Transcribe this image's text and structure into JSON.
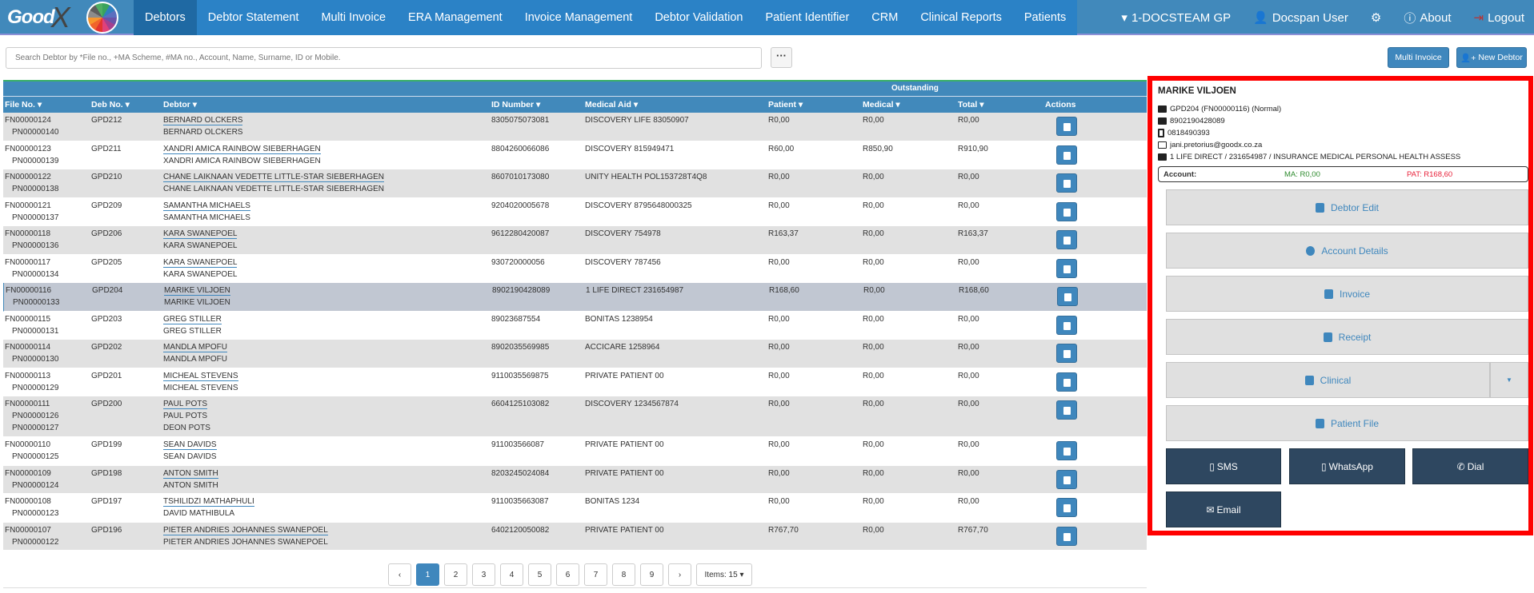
{
  "nav": {
    "logo": "Good",
    "logo_x": "X",
    "tabs": [
      "Debtors",
      "Debtor Statement",
      "Multi Invoice",
      "ERA Management",
      "Invoice Management",
      "Debtor Validation",
      "Patient Identifier",
      "CRM",
      "Clinical Reports",
      "Patients"
    ],
    "practice": "1-DOCSTEAM GP",
    "user": "Docspan User",
    "about": "About",
    "logout": "Logout"
  },
  "toolbar": {
    "search_placeholder": "Search Debtor by *File no., +MA Scheme, #MA no., Account, Name, Surname, ID or Mobile.",
    "more": "···",
    "multi_invoice": "Multi Invoice",
    "new_debtor": "New Debtor"
  },
  "table": {
    "group_header": "Outstanding",
    "columns": [
      "File No.",
      "Deb No.",
      "Debtor",
      "ID Number",
      "Medical Aid",
      "Patient",
      "Medical",
      "Total",
      "Actions"
    ],
    "rows": [
      {
        "file": "FN00000124",
        "pn": [
          "PN00000140"
        ],
        "deb": "GPD212",
        "debtor": "BERNARD OLCKERS",
        "patients": [
          "BERNARD OLCKERS"
        ],
        "id": "8305075073081",
        "ma": "DISCOVERY LIFE 83050907",
        "patient": "R0,00",
        "medical": "R0,00",
        "total": "R0,00"
      },
      {
        "file": "FN00000123",
        "pn": [
          "PN00000139"
        ],
        "deb": "GPD211",
        "debtor": "XANDRI AMICA RAINBOW SIEBERHAGEN",
        "patients": [
          "XANDRI AMICA RAINBOW SIEBERHAGEN"
        ],
        "id": "8804260066086",
        "ma": "DISCOVERY 815949471",
        "patient": "R60,00",
        "medical": "R850,90",
        "total": "R910,90"
      },
      {
        "file": "FN00000122",
        "pn": [
          "PN00000138"
        ],
        "deb": "GPD210",
        "debtor": "CHANE LAIKNAAN VEDETTE LITTLE-STAR SIEBERHAGEN",
        "patients": [
          "CHANE LAIKNAAN VEDETTE LITTLE-STAR SIEBERHAGEN"
        ],
        "id": "8607010173080",
        "ma": "UNITY HEALTH POL153728T4Q8",
        "patient": "R0,00",
        "medical": "R0,00",
        "total": "R0,00"
      },
      {
        "file": "FN00000121",
        "pn": [
          "PN00000137"
        ],
        "deb": "GPD209",
        "debtor": "SAMANTHA MICHAELS",
        "patients": [
          "SAMANTHA MICHAELS"
        ],
        "id": "9204020005678",
        "ma": "DISCOVERY 8795648000325",
        "patient": "R0,00",
        "medical": "R0,00",
        "total": "R0,00"
      },
      {
        "file": "FN00000118",
        "pn": [
          "PN00000136"
        ],
        "deb": "GPD206",
        "debtor": "KARA SWANEPOEL",
        "patients": [
          "KARA SWANEPOEL"
        ],
        "id": "9612280420087",
        "ma": "DISCOVERY 754978",
        "patient": "R163,37",
        "medical": "R0,00",
        "total": "R163,37"
      },
      {
        "file": "FN00000117",
        "pn": [
          "PN00000134"
        ],
        "deb": "GPD205",
        "debtor": "KARA SWANEPOEL",
        "patients": [
          "KARA SWANEPOEL"
        ],
        "id": "930720000056",
        "ma": "DISCOVERY 787456",
        "patient": "R0,00",
        "medical": "R0,00",
        "total": "R0,00"
      },
      {
        "file": "FN00000116",
        "pn": [
          "PN00000133"
        ],
        "deb": "GPD204",
        "debtor": "MARIKE VILJOEN",
        "patients": [
          "MARIKE VILJOEN"
        ],
        "id": "8902190428089",
        "ma": "1 LIFE DIRECT 231654987",
        "patient": "R168,60",
        "medical": "R0,00",
        "total": "R168,60",
        "selected": true
      },
      {
        "file": "FN00000115",
        "pn": [
          "PN00000131"
        ],
        "deb": "GPD203",
        "debtor": "GREG STILLER",
        "patients": [
          "GREG STILLER"
        ],
        "id": "89023687554",
        "ma": "BONITAS 1238954",
        "patient": "R0,00",
        "medical": "R0,00",
        "total": "R0,00"
      },
      {
        "file": "FN00000114",
        "pn": [
          "PN00000130"
        ],
        "deb": "GPD202",
        "debtor": "MANDLA MPOFU",
        "patients": [
          "MANDLA MPOFU"
        ],
        "id": "8902035569985",
        "ma": "ACCICARE 1258964",
        "patient": "R0,00",
        "medical": "R0,00",
        "total": "R0,00"
      },
      {
        "file": "FN00000113",
        "pn": [
          "PN00000129"
        ],
        "deb": "GPD201",
        "debtor": "MICHEAL STEVENS",
        "patients": [
          "MICHEAL STEVENS"
        ],
        "id": "9110035569875",
        "ma": "PRIVATE PATIENT 00",
        "patient": "R0,00",
        "medical": "R0,00",
        "total": "R0,00"
      },
      {
        "file": "FN00000111",
        "pn": [
          "PN00000126",
          "PN00000127"
        ],
        "deb": "GPD200",
        "debtor": "PAUL POTS",
        "patients": [
          "PAUL POTS",
          "DEON POTS"
        ],
        "id": "6604125103082",
        "ma": "DISCOVERY 1234567874",
        "patient": "R0,00",
        "medical": "R0,00",
        "total": "R0,00"
      },
      {
        "file": "FN00000110",
        "pn": [
          "PN00000125"
        ],
        "deb": "GPD199",
        "debtor": "SEAN DAVIDS",
        "patients": [
          "SEAN DAVIDS"
        ],
        "id": "911003566087",
        "ma": "PRIVATE PATIENT 00",
        "patient": "R0,00",
        "medical": "R0,00",
        "total": "R0,00"
      },
      {
        "file": "FN00000109",
        "pn": [
          "PN00000124"
        ],
        "deb": "GPD198",
        "debtor": "ANTON SMITH",
        "patients": [
          "ANTON SMITH"
        ],
        "id": "8203245024084",
        "ma": "PRIVATE PATIENT 00",
        "patient": "R0,00",
        "medical": "R0,00",
        "total": "R0,00"
      },
      {
        "file": "FN00000108",
        "pn": [
          "PN00000123"
        ],
        "deb": "GPD197",
        "debtor": "TSHILIDZI MATHAPHULI",
        "patients": [
          "DAVID MATHIBULA"
        ],
        "id": "9110035663087",
        "ma": "BONITAS 1234",
        "patient": "R0,00",
        "medical": "R0,00",
        "total": "R0,00"
      },
      {
        "file": "FN00000107",
        "pn": [
          "PN00000122"
        ],
        "deb": "GPD196",
        "debtor": "PIETER ANDRIES JOHANNES SWANEPOEL",
        "patients": [
          "PIETER ANDRIES JOHANNES SWANEPOEL"
        ],
        "id": "6402120050082",
        "ma": "PRIVATE PATIENT 00",
        "patient": "R767,70",
        "medical": "R0,00",
        "total": "R767,70"
      }
    ]
  },
  "pagination": {
    "prev": "‹",
    "next": "›",
    "pages": [
      "1",
      "2",
      "3",
      "4",
      "5",
      "6",
      "7",
      "8",
      "9"
    ],
    "current": "1",
    "items": "Items: 15"
  },
  "panel": {
    "name": "MARIKE VILJOEN",
    "file": "GPD204 (FN00000116) (Normal)",
    "id": "8902190428089",
    "phone": "0818490393",
    "email": "jani.pretorius@goodx.co.za",
    "medical_aid": "1 LIFE DIRECT / 231654987 / INSURANCE MEDICAL PERSONAL HEALTH ASSESS",
    "account_label": "Account:",
    "ma": "MA: R0,00",
    "pat": "PAT: R168,60",
    "buttons": [
      "Debtor Edit",
      "Account Details",
      "Invoice",
      "Receipt",
      "Clinical",
      "Patient File"
    ],
    "sms": "SMS",
    "whatsapp": "WhatsApp",
    "dial": "Dial",
    "email_btn": "Email"
  },
  "colors": {
    "nav": "#4189bb",
    "active_tab": "#1f69a3",
    "dark_button": "#2e4760",
    "ma": "#2e8b2e",
    "pat": "#e8213a",
    "highlight": "#ff0000"
  }
}
